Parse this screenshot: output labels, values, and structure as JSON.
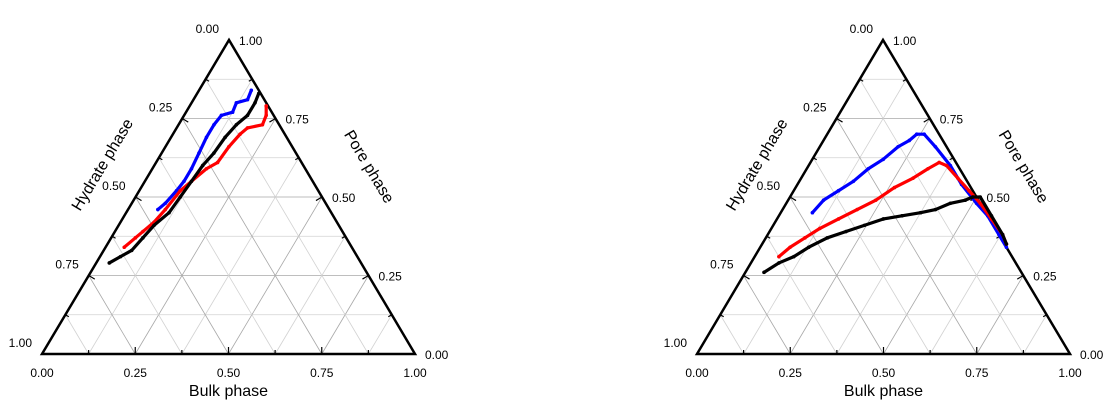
{
  "chart_data": [
    {
      "type": "ternary",
      "axis_titles": {
        "bottom": "Bulk phase",
        "left": "Hydrate phase",
        "right": "Pore phase"
      },
      "tick_values": [
        0,
        0.25,
        0.5,
        0.75,
        1
      ],
      "tick_labels": {
        "bottom": [
          "0.00",
          "0.25",
          "0.50",
          "0.75",
          "1.00"
        ],
        "left": [
          "0.00",
          "0.25",
          "0.50",
          "0.75",
          "1.00"
        ],
        "right": [
          "0.00",
          "0.25",
          "0.50",
          "0.75",
          "1.00"
        ]
      },
      "grid": true,
      "series": [
        {
          "color": "#0000ff",
          "points": [
            [
              0.31,
              0.46
            ],
            [
              0.33,
              0.48
            ],
            [
              0.36,
              0.52
            ],
            [
              0.38,
              0.55
            ],
            [
              0.4,
              0.59
            ],
            [
              0.42,
              0.64
            ],
            [
              0.44,
              0.69
            ],
            [
              0.46,
              0.73
            ],
            [
              0.48,
              0.76
            ],
            [
              0.51,
              0.77
            ],
            [
              0.52,
              0.8
            ],
            [
              0.55,
              0.81
            ],
            [
              0.56,
              0.84
            ]
          ]
        },
        {
          "color": "#ff0000",
          "points": [
            [
              0.22,
              0.34
            ],
            [
              0.25,
              0.37
            ],
            [
              0.27,
              0.39
            ],
            [
              0.3,
              0.42
            ],
            [
              0.33,
              0.46
            ],
            [
              0.37,
              0.52
            ],
            [
              0.4,
              0.55
            ],
            [
              0.44,
              0.59
            ],
            [
              0.47,
              0.61
            ],
            [
              0.5,
              0.66
            ],
            [
              0.53,
              0.7
            ],
            [
              0.55,
              0.72
            ],
            [
              0.59,
              0.73
            ],
            [
              0.6,
              0.76
            ],
            [
              0.6,
              0.79
            ]
          ]
        },
        {
          "color": "#000000",
          "points": [
            [
              0.18,
              0.29
            ],
            [
              0.21,
              0.31
            ],
            [
              0.24,
              0.33
            ],
            [
              0.27,
              0.37
            ],
            [
              0.3,
              0.41
            ],
            [
              0.34,
              0.45
            ],
            [
              0.37,
              0.5
            ],
            [
              0.4,
              0.55
            ],
            [
              0.43,
              0.6
            ],
            [
              0.46,
              0.64
            ],
            [
              0.49,
              0.69
            ],
            [
              0.52,
              0.73
            ],
            [
              0.55,
              0.76
            ],
            [
              0.57,
              0.8
            ],
            [
              0.58,
              0.83
            ]
          ]
        }
      ]
    },
    {
      "type": "ternary",
      "axis_titles": {
        "bottom": "Bulk phase",
        "left": "Hydrate phase",
        "right": "Pore phase"
      },
      "tick_values": [
        0,
        0.25,
        0.5,
        0.75,
        1
      ],
      "tick_labels": {
        "bottom": [
          "0.00",
          "0.25",
          "0.50",
          "0.75",
          "1.00"
        ],
        "left": [
          "0.00",
          "0.25",
          "0.50",
          "0.75",
          "1.00"
        ],
        "right": [
          "0.00",
          "0.25",
          "0.50",
          "0.75",
          "1.00"
        ]
      },
      "grid": true,
      "series": [
        {
          "color": "#0000ff",
          "points": [
            [
              0.31,
              0.45
            ],
            [
              0.34,
              0.49
            ],
            [
              0.38,
              0.52
            ],
            [
              0.42,
              0.55
            ],
            [
              0.46,
              0.59
            ],
            [
              0.5,
              0.62
            ],
            [
              0.54,
              0.66
            ],
            [
              0.57,
              0.68
            ],
            [
              0.59,
              0.7
            ],
            [
              0.61,
              0.7
            ],
            [
              0.64,
              0.66
            ],
            [
              0.68,
              0.6
            ],
            [
              0.71,
              0.54
            ],
            [
              0.75,
              0.48
            ],
            [
              0.78,
              0.44
            ],
            [
              0.81,
              0.38
            ],
            [
              0.83,
              0.34
            ]
          ]
        },
        {
          "color": "#ff0000",
          "points": [
            [
              0.22,
              0.31
            ],
            [
              0.25,
              0.34
            ],
            [
              0.29,
              0.37
            ],
            [
              0.33,
              0.4
            ],
            [
              0.38,
              0.43
            ],
            [
              0.43,
              0.46
            ],
            [
              0.48,
              0.49
            ],
            [
              0.53,
              0.53
            ],
            [
              0.58,
              0.56
            ],
            [
              0.62,
              0.59
            ],
            [
              0.65,
              0.61
            ],
            [
              0.67,
              0.6
            ],
            [
              0.7,
              0.56
            ],
            [
              0.73,
              0.52
            ],
            [
              0.76,
              0.48
            ],
            [
              0.79,
              0.43
            ],
            [
              0.82,
              0.38
            ],
            [
              0.83,
              0.35
            ]
          ]
        },
        {
          "color": "#000000",
          "points": [
            [
              0.18,
              0.26
            ],
            [
              0.22,
              0.29
            ],
            [
              0.26,
              0.31
            ],
            [
              0.3,
              0.34
            ],
            [
              0.35,
              0.37
            ],
            [
              0.4,
              0.39
            ],
            [
              0.45,
              0.41
            ],
            [
              0.5,
              0.43
            ],
            [
              0.55,
              0.44
            ],
            [
              0.6,
              0.45
            ],
            [
              0.64,
              0.46
            ],
            [
              0.68,
              0.48
            ],
            [
              0.72,
              0.49
            ],
            [
              0.74,
              0.5
            ],
            [
              0.76,
              0.5
            ],
            [
              0.79,
              0.44
            ],
            [
              0.82,
              0.38
            ],
            [
              0.83,
              0.35
            ]
          ]
        }
      ]
    }
  ]
}
